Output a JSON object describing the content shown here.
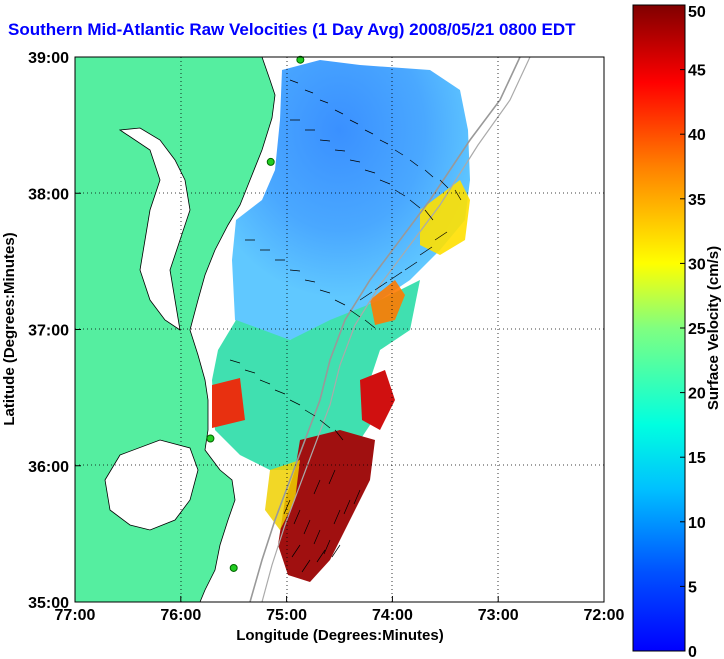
{
  "chart_data": {
    "type": "heatmap",
    "title": "Southern Mid-Atlantic Raw Velocities (1 Day Avg) 2008/05/21 0800 EDT",
    "xlabel": "Longitude (Degrees:Minutes)",
    "ylabel": "Latitude (Degrees:Minutes)",
    "x_ticks": [
      "77:00",
      "76:00",
      "75:00",
      "74:00",
      "73:00",
      "72:00"
    ],
    "x_values": [
      -77,
      -76,
      -75,
      -74,
      -73,
      -72
    ],
    "y_ticks": [
      "35:00",
      "36:00",
      "37:00",
      "38:00",
      "39:00"
    ],
    "y_values": [
      35,
      36,
      37,
      38,
      39
    ],
    "xlim": [
      -77,
      -72
    ],
    "ylim": [
      35,
      39
    ],
    "grid": true,
    "colorbar": {
      "label": "Surface Velocity (cm/s)",
      "ticks": [
        "0",
        "5",
        "10",
        "15",
        "20",
        "25",
        "30",
        "35",
        "40",
        "45",
        "50"
      ],
      "range": [
        0,
        50
      ],
      "colormap": "jet"
    },
    "stations": [
      {
        "lon": -74.87,
        "lat": 38.98
      },
      {
        "lon": -75.15,
        "lat": 38.23
      },
      {
        "lon": -75.72,
        "lat": 36.2
      },
      {
        "lon": -75.5,
        "lat": 35.25
      }
    ],
    "colors": {
      "land": "#55eea0",
      "water_bg": "#ffffff",
      "coast": "#000000",
      "grid": "#000000",
      "isobath": "#999999",
      "station": "#22cc22"
    }
  }
}
